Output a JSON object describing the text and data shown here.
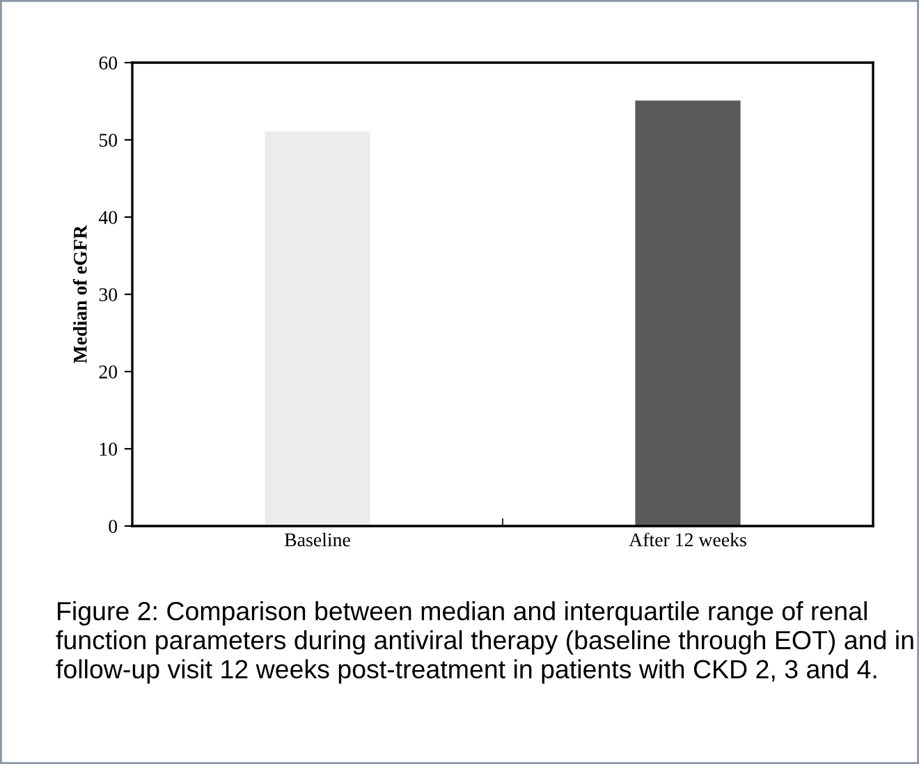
{
  "chart_data": {
    "type": "bar",
    "ylabel": "Median of eGFR",
    "categories": [
      "Baseline",
      "After 12 weeks"
    ],
    "values": [
      51,
      55
    ],
    "colors": [
      "#ececec",
      "#5a5a5a"
    ],
    "ylim": [
      0,
      60
    ],
    "yticks": [
      0,
      10,
      20,
      30,
      40,
      50,
      60
    ],
    "grid": false,
    "legend": false,
    "annotations": [
      "Figure 2: Comparison between median and interquartile range of renal function parameters during antiviral therapy (baseline through EOT) and in follow-up visit 12 weeks post-treatment in patients with CKD 2, 3 and 4."
    ]
  }
}
